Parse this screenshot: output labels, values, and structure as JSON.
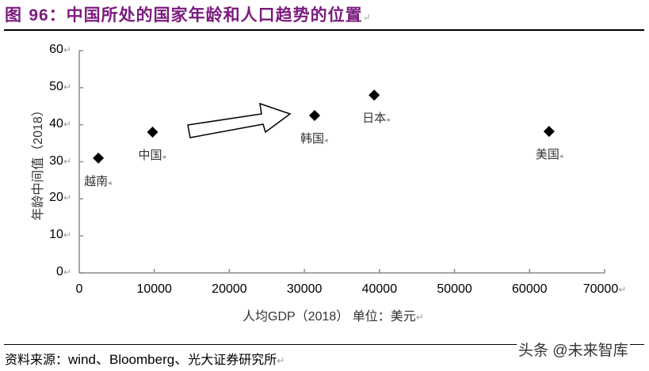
{
  "figure": {
    "title_prefix": "图 ",
    "title_number": "96",
    "title_text": "：中国所处的国家年龄和人口趋势的位置",
    "return_mark": "↵"
  },
  "chart_data": {
    "type": "scatter",
    "title": "中国所处的国家年龄和人口趋势的位置",
    "xlabel": "人均GDP（2018） 单位：美元",
    "ylabel": "年龄中间值（2018）",
    "xlim": [
      0,
      70000
    ],
    "ylim": [
      0,
      60
    ],
    "x_ticks": [
      "0",
      "10000",
      "20000",
      "30000",
      "40000",
      "50000",
      "60000",
      "70000"
    ],
    "y_ticks": [
      "0",
      "10",
      "20",
      "30",
      "40",
      "50",
      "60"
    ],
    "grid": false,
    "legend": null,
    "points": [
      {
        "label": "越南",
        "x": 2550,
        "y": 31
      },
      {
        "label": "中国",
        "x": 9770,
        "y": 38
      },
      {
        "label": "韩国",
        "x": 31360,
        "y": 42.5
      },
      {
        "label": "日本",
        "x": 39300,
        "y": 48
      },
      {
        "label": "美国",
        "x": 62600,
        "y": 38.2
      }
    ],
    "annotations": [
      {
        "type": "arrow",
        "description": "hollow block arrow pointing from China toward Korea/Japan"
      }
    ],
    "marker": "diamond",
    "marker_color": "#000000"
  },
  "footer": {
    "source_label": "资料来源：",
    "source_text": "wind、Bloomberg、",
    "source_org": "光大证券研究所",
    "watermark": "头条 @未来智库"
  }
}
